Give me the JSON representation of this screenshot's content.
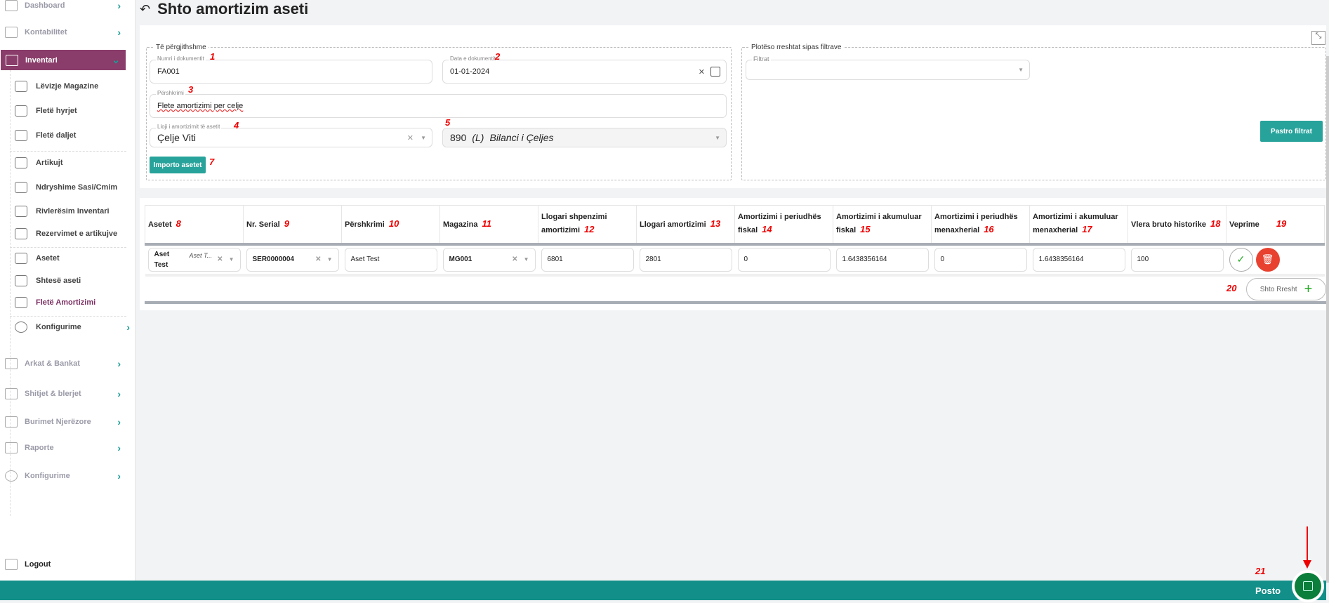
{
  "sidebar": {
    "items": [
      {
        "label": "Dashboard",
        "icon": "grid-icon"
      },
      {
        "label": "Kontabilitet",
        "icon": "folder-icon"
      },
      {
        "label": "Inventari",
        "icon": "inventory-icon"
      }
    ],
    "sub_items": [
      {
        "label": "Lëvizje Magazine"
      },
      {
        "label": "Fletë hyrjet"
      },
      {
        "label": "Fletë daljet"
      },
      {
        "label": "Artikujt"
      },
      {
        "label": "Ndryshime Sasi/Cmim"
      },
      {
        "label": "Rivlerësim Inventari"
      },
      {
        "label": "Rezervimet e artikujve"
      },
      {
        "label": "Asetet"
      },
      {
        "label": "Shtesë aseti"
      },
      {
        "label": "Fletë Amortizimi"
      },
      {
        "label": "Konfigurime"
      }
    ],
    "bottom_items": [
      {
        "label": "Arkat & Bankat"
      },
      {
        "label": "Shitjet & blerjet"
      },
      {
        "label": "Burimet Njerëzore"
      },
      {
        "label": "Raporte"
      },
      {
        "label": "Konfigurime"
      }
    ],
    "logout": "Logout",
    "active_color": "#8a3d6a"
  },
  "page": {
    "title": "Shto amortizim aseti"
  },
  "general": {
    "legend": "Të përgjithshme",
    "doc_number": {
      "label": "Numri i dokumentit",
      "value": "FA001"
    },
    "doc_date": {
      "label": "Data e dokumentit",
      "value": "01-01-2024"
    },
    "description": {
      "label": "Përshkrimi",
      "value": "Flete amortizimi per celje"
    },
    "type": {
      "label": "Lloji i amortizimit të asetit",
      "value": "Çelje Viti"
    },
    "account": {
      "code": "890",
      "flag": "(L)",
      "name": "Bilanci i Çeljes"
    },
    "import_button": "Importo asetet"
  },
  "filters": {
    "legend": "Plotëso rreshtat sipas filtrave",
    "label": "Filtrat",
    "value": "",
    "clear_button": "Pastro filtrat"
  },
  "table": {
    "headers": [
      "Asetet",
      "Nr. Serial",
      "Përshkrimi",
      "Magazina",
      "Llogari shpenzimi amortizimi",
      "Llogari amortizimi",
      "Amortizimi i periudhës fiskal",
      "Amortizimi i akumuluar fiskal",
      "Amortizimi i periudhës menaxherial",
      "Amortizimi i akumuluar menaxherial",
      "Vlera bruto historike",
      "Veprime"
    ],
    "row": {
      "asset": "Aset Test",
      "asset_hint": "Aset T...",
      "serial": "SER0000004",
      "description": "Aset Test",
      "warehouse": "MG001",
      "expense_account": "6801",
      "depreciation_account": "2801",
      "period_fiscal": "0",
      "accum_fiscal": "1.6438356164",
      "period_mgmt": "0",
      "accum_mgmt": "1.6438356164",
      "gross_value": "100"
    },
    "add_row": "Shto Rresht"
  },
  "footer": {
    "post_label": "Posto",
    "color": "#128f88"
  },
  "annotations": [
    "1",
    "2",
    "3",
    "4",
    "5",
    "7",
    "8",
    "9",
    "10",
    "11",
    "12",
    "13",
    "14",
    "15",
    "16",
    "17",
    "18",
    "19",
    "20",
    "21"
  ]
}
